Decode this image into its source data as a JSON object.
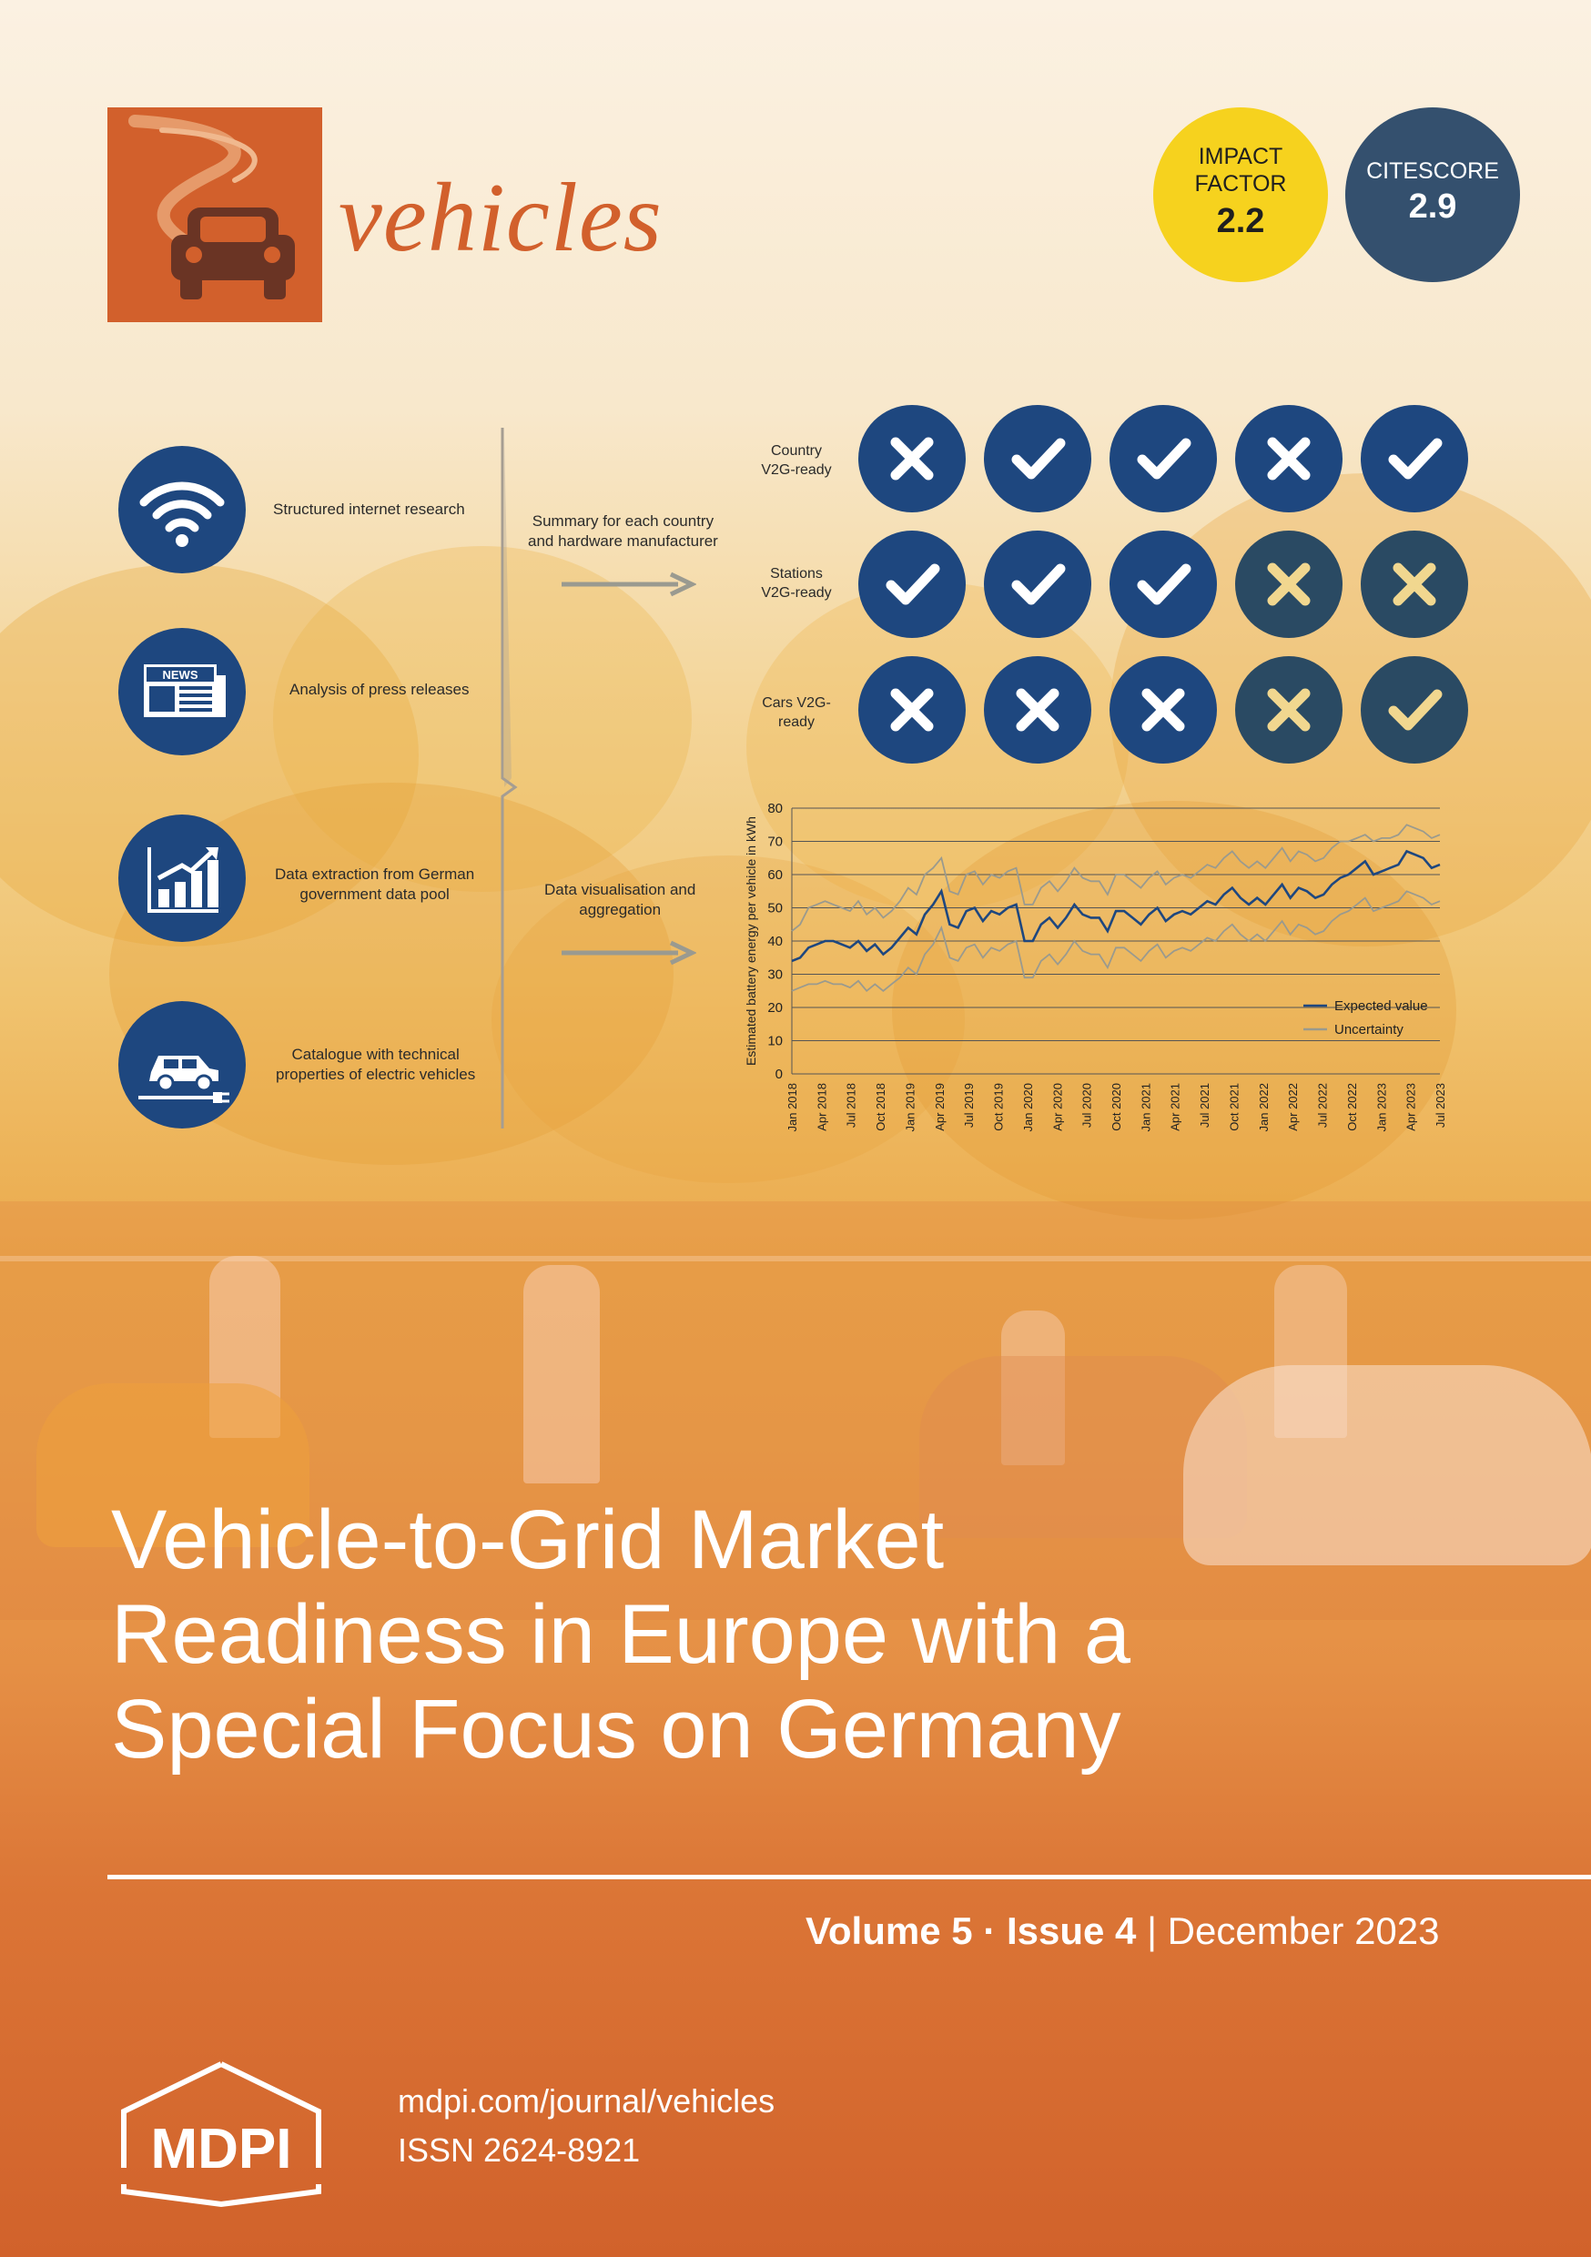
{
  "journal": {
    "name": "vehicles",
    "impact_factor": {
      "line1": "IMPACT",
      "line2": "FACTOR",
      "value": "2.2"
    },
    "citescore": {
      "label": "CITESCORE",
      "value": "2.9"
    }
  },
  "methods": [
    {
      "label": "Structured internet research",
      "icon": "wifi-icon"
    },
    {
      "label": "Analysis of press releases",
      "icon": "newspaper-icon",
      "icon_text": "NEWS"
    },
    {
      "label_line1": "Data extraction from German",
      "label_line2": "government data pool",
      "icon": "bar-chart-growth-icon"
    },
    {
      "label_line1": "Catalogue with technical",
      "label_line2": "properties of electric vehicles",
      "icon": "electric-car-icon"
    }
  ],
  "middle": {
    "summary_line1": "Summary for each country",
    "summary_line2": "and hardware manufacturer",
    "viz_line1": "Data visualisation and",
    "viz_line2": "aggregation"
  },
  "readiness": {
    "rows": [
      {
        "label_line1": "Country",
        "label_line2": "V2G-ready",
        "marks": [
          "cross",
          "check",
          "check",
          "cross",
          "check"
        ],
        "faded": [
          false,
          false,
          false,
          false,
          false
        ]
      },
      {
        "label_line1": "Stations",
        "label_line2": "V2G-ready",
        "marks": [
          "check",
          "check",
          "check",
          "cross",
          "cross"
        ],
        "faded": [
          false,
          false,
          false,
          true,
          true
        ]
      },
      {
        "label_line1": "Cars V2G-",
        "label_line2": "ready",
        "marks": [
          "cross",
          "cross",
          "cross",
          "cross",
          "check"
        ],
        "faded": [
          false,
          false,
          false,
          true,
          true
        ]
      }
    ],
    "colors": {
      "strong": "#1e477f",
      "faded": "#2a4a63",
      "mark_white": "#ffffff",
      "mark_faded": "#f1d78f"
    }
  },
  "chart_data": {
    "type": "line",
    "title": "",
    "xlabel": "",
    "ylabel": "Estimated battery energy per vehicle in kWh",
    "ylim": [
      0,
      80
    ],
    "yticks": [
      0,
      10,
      20,
      30,
      40,
      50,
      60,
      70,
      80
    ],
    "xtick_labels": [
      "Jan 2018",
      "Apr 2018",
      "Jul 2018",
      "Oct 2018",
      "Jan 2019",
      "Apr 2019",
      "Jul 2019",
      "Oct 2019",
      "Jan 2020",
      "Apr 2020",
      "Jul 2020",
      "Oct 2020",
      "Jan 2021",
      "Apr 2021",
      "Jul 2021",
      "Oct 2021",
      "Jan 2022",
      "Apr 2022",
      "Jul 2022",
      "Oct 2022",
      "Jan 2023",
      "Apr 2023",
      "Jul 2023"
    ],
    "legend_position": "bottom-right",
    "grid": true,
    "series": [
      {
        "name": "Expected value",
        "color": "#1e477f",
        "values": [
          34,
          35,
          38,
          39,
          40,
          40,
          39,
          38,
          40,
          37,
          39,
          36,
          38,
          41,
          44,
          42,
          48,
          51,
          55,
          45,
          44,
          49,
          50,
          46,
          49,
          48,
          50,
          51,
          40,
          40,
          45,
          47,
          44,
          47,
          51,
          48,
          47,
          47,
          43,
          49,
          49,
          47,
          45,
          48,
          50,
          46,
          48,
          49,
          48,
          50,
          52,
          51,
          54,
          56,
          53,
          51,
          53,
          51,
          54,
          57,
          53,
          56,
          55,
          53,
          54,
          57,
          59,
          60,
          62,
          64,
          60,
          61,
          62,
          63,
          67,
          66,
          65,
          62,
          63
        ]
      },
      {
        "name": "Uncertainty",
        "color": "#9a9a8e",
        "values": [
          43,
          45,
          50,
          51,
          52,
          51,
          50,
          49,
          52,
          48,
          50,
          47,
          49,
          52,
          56,
          54,
          60,
          62,
          65,
          55,
          54,
          60,
          61,
          57,
          60,
          59,
          61,
          62,
          51,
          51,
          56,
          58,
          55,
          58,
          62,
          59,
          58,
          58,
          54,
          60,
          60,
          58,
          56,
          59,
          61,
          57,
          59,
          60,
          59,
          61,
          63,
          62,
          65,
          67,
          64,
          62,
          64,
          62,
          65,
          68,
          64,
          67,
          66,
          64,
          65,
          68,
          70,
          70,
          71,
          72,
          70,
          71,
          71,
          72,
          75,
          74,
          73,
          71,
          72
        ]
      },
      {
        "name": "",
        "color": "#9a9a8e",
        "values": [
          25,
          26,
          27,
          27,
          28,
          27,
          27,
          26,
          28,
          25,
          27,
          25,
          27,
          29,
          32,
          30,
          36,
          39,
          44,
          35,
          34,
          38,
          39,
          35,
          38,
          37,
          39,
          40,
          29,
          29,
          34,
          36,
          33,
          36,
          40,
          37,
          36,
          36,
          32,
          38,
          38,
          36,
          34,
          37,
          39,
          35,
          37,
          38,
          37,
          39,
          41,
          40,
          43,
          45,
          42,
          40,
          42,
          40,
          43,
          46,
          42,
          45,
          44,
          42,
          43,
          46,
          48,
          49,
          51,
          53,
          49,
          50,
          51,
          52,
          55,
          54,
          53,
          51,
          52
        ]
      }
    ]
  },
  "cover": {
    "title_lines": [
      "Vehicle-to-Grid Market",
      "Readiness in Europe with a",
      "Special Focus on Germany"
    ],
    "volume": "Volume 5",
    "separator": "·",
    "issue": "Issue 4",
    "date_separator": "|",
    "date": "December 2023",
    "publisher": "MDPI",
    "url": "mdpi.com/journal/vehicles",
    "issn": "ISSN 2624-8921"
  }
}
